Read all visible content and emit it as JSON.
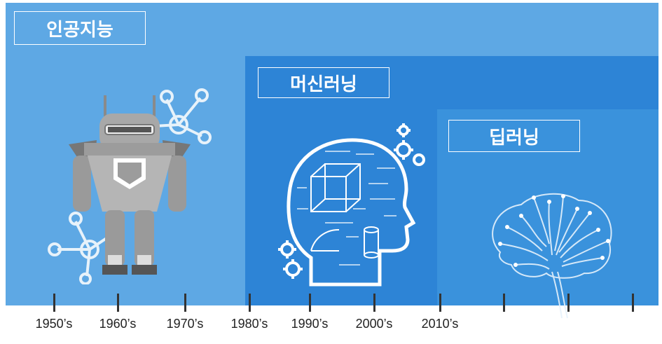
{
  "eras": {
    "ai": {
      "label": "인공지능"
    },
    "ml": {
      "label": "머신러닝"
    },
    "dl": {
      "label": "딥러닝"
    }
  },
  "timeline": {
    "years": [
      "1950’s",
      "1960’s",
      "1970’s",
      "1980’s",
      "1990’s",
      "2000’s",
      "2010’s"
    ]
  },
  "colors": {
    "ai_panel": "#5ea8e4",
    "ml_panel": "#2d84d6",
    "dl_panel": "#3a92dc",
    "robot_gray": "#a9a9a9",
    "tick": "#333333"
  },
  "icons": [
    "robot-icon",
    "network-icon",
    "head-formula-icon",
    "gear-icon",
    "brain-circuit-icon"
  ]
}
